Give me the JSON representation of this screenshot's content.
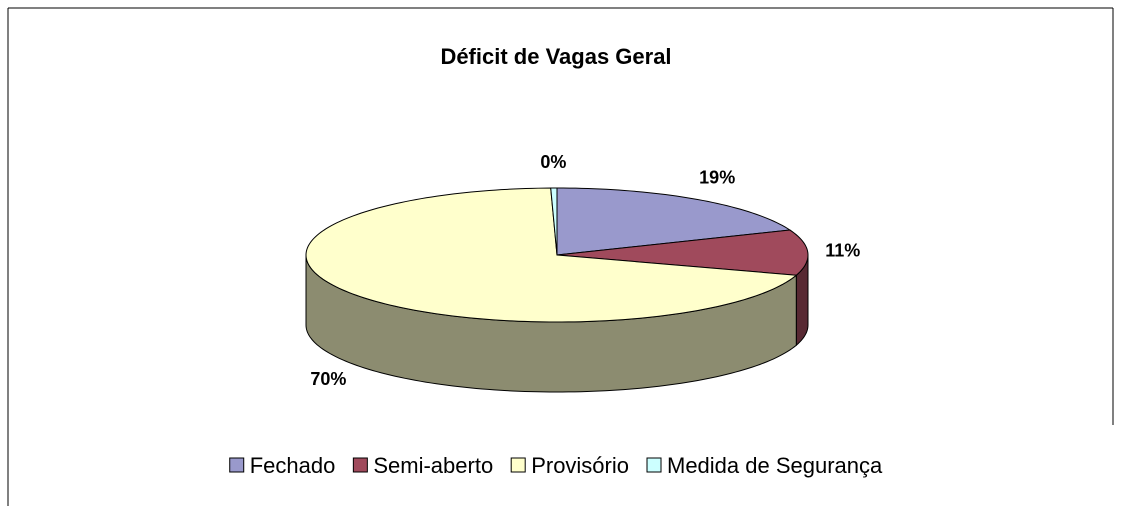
{
  "chart_data": {
    "type": "pie3d",
    "title": "Déficit de Vagas Geral",
    "categories": [
      "Fechado",
      "Semi-aberto",
      "Provisório",
      "Medida de Segurança"
    ],
    "values": [
      19,
      11,
      70,
      0.4
    ],
    "value_labels": [
      "19%",
      "11%",
      "70%",
      "0%"
    ],
    "colors": [
      "#9999cc",
      "#a04a5c",
      "#ffffcc",
      "#ccffff"
    ],
    "legend": "bottom"
  }
}
